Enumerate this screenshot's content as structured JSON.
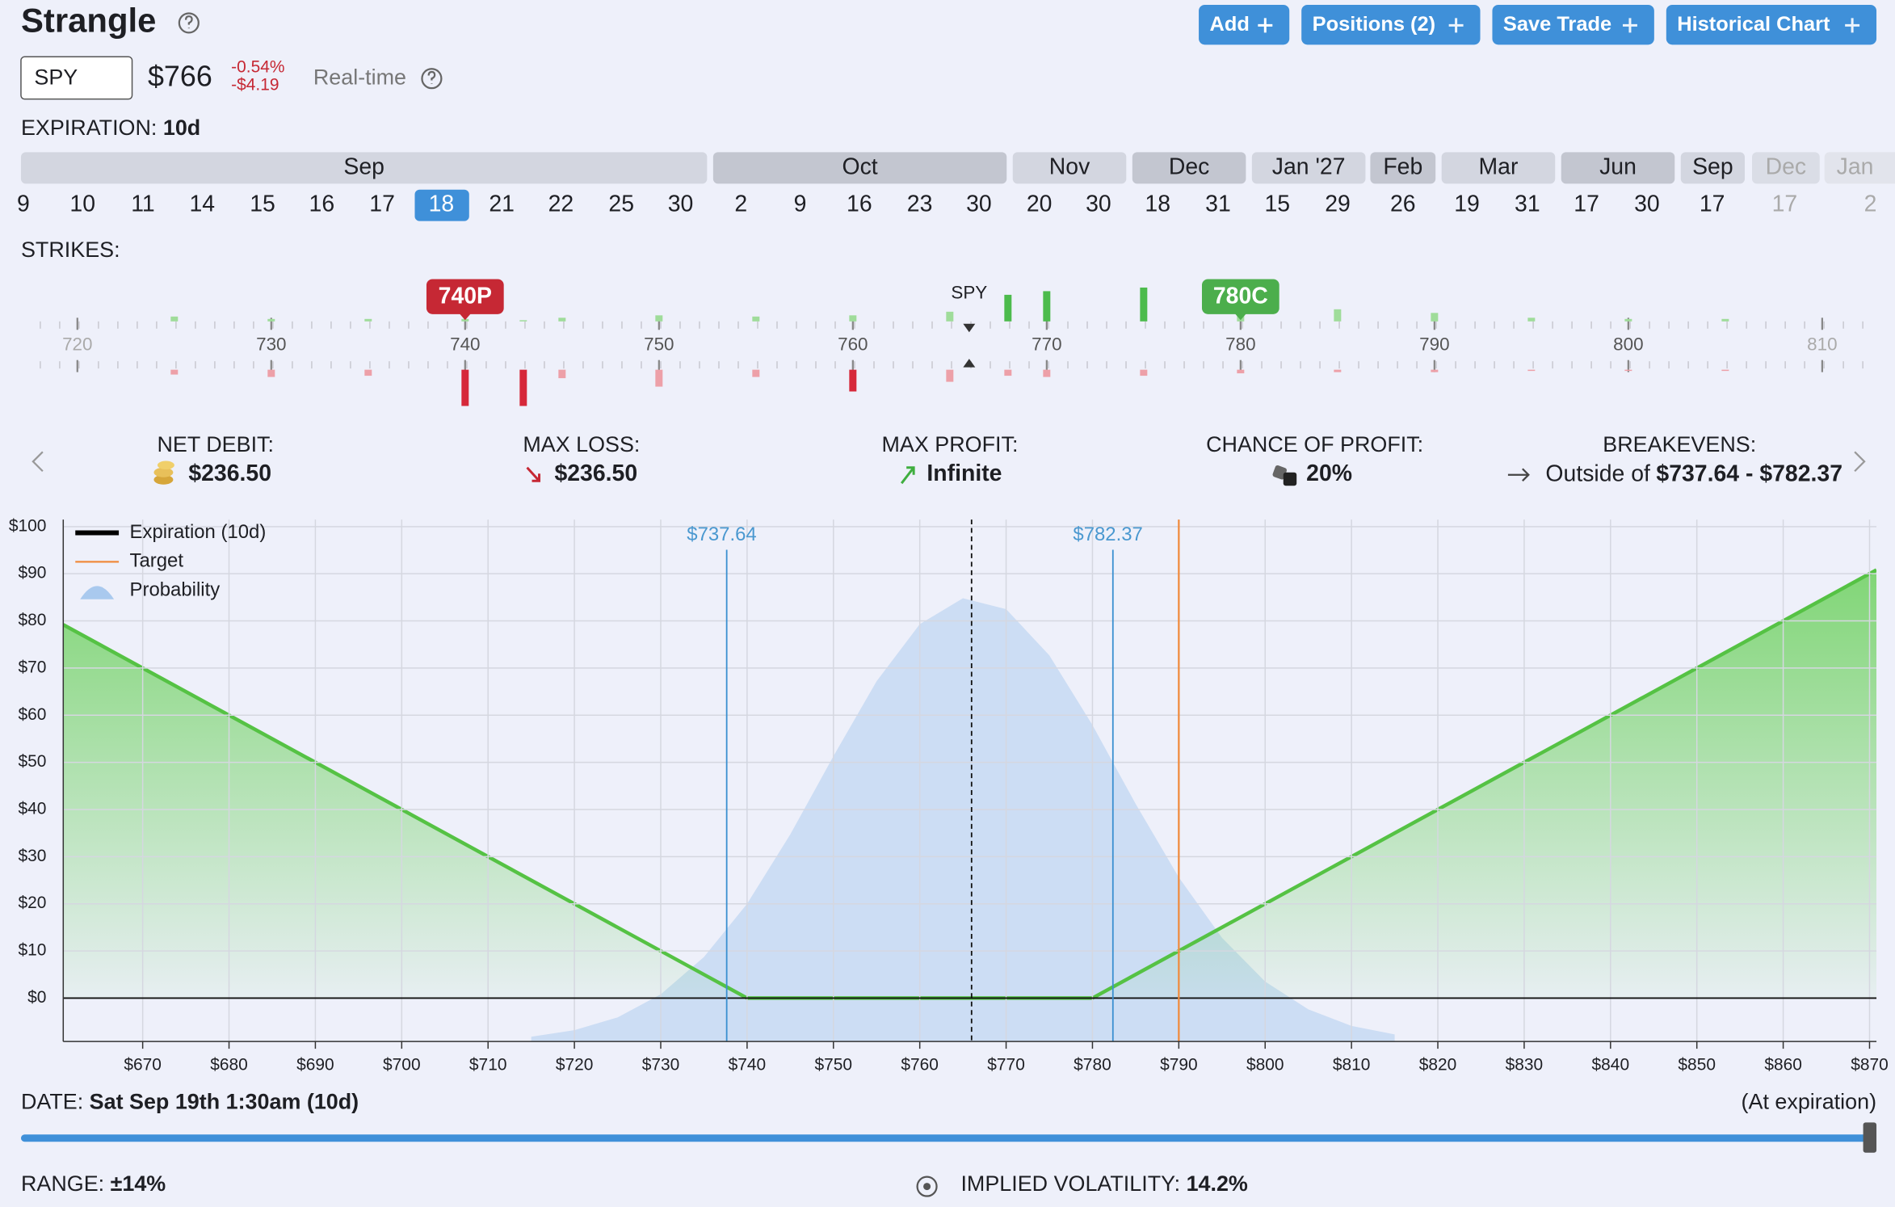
{
  "header": {
    "title": "Strangle",
    "buttons": [
      "Add",
      "Positions (2)",
      "Save Trade",
      "Historical Chart"
    ]
  },
  "quote": {
    "symbol": "SPY",
    "price": "$766",
    "change_pct": "-0.54%",
    "change": "-$4.19",
    "mode": "Real-time"
  },
  "expiration": {
    "label": "EXPIRATION:",
    "value": "10d",
    "selected": {
      "month": 0,
      "day": 7
    },
    "months": [
      {
        "label": "Sep",
        "days": [
          "9",
          "10",
          "11",
          "14",
          "15",
          "16",
          "17",
          "18",
          "21",
          "22",
          "25",
          "30"
        ]
      },
      {
        "label": "Oct",
        "days": [
          "2",
          "9",
          "16",
          "23",
          "30"
        ]
      },
      {
        "label": "Nov",
        "days": [
          "20",
          "30"
        ]
      },
      {
        "label": "Dec",
        "days": [
          "18",
          "31"
        ]
      },
      {
        "label": "Jan '27",
        "days": [
          "15",
          "29"
        ]
      },
      {
        "label": "Feb",
        "days": [
          "26"
        ]
      },
      {
        "label": "Mar",
        "days": [
          "19",
          "31"
        ]
      },
      {
        "label": "Jun",
        "days": [
          "17",
          "30"
        ]
      },
      {
        "label": "Sep",
        "days": [
          "17"
        ]
      },
      {
        "label": "Dec",
        "days": [
          "17"
        ]
      },
      {
        "label": "Jan",
        "days": [
          "2"
        ]
      }
    ]
  },
  "strikes": {
    "label": "STRIKES:",
    "xlim": [
      717.9,
      812.3
    ],
    "ticks": [
      720,
      730,
      740,
      750,
      760,
      770,
      780,
      790,
      800,
      810
    ],
    "underlying_label": "SPY",
    "underlying": 766,
    "legs": [
      {
        "label": "740P",
        "strike": 740,
        "color": "#c62834"
      },
      {
        "label": "780C",
        "strike": 780,
        "color": "#4cae4c"
      }
    ],
    "bars": {
      "strikes": [
        725,
        730,
        735,
        740,
        743,
        745,
        750,
        755,
        760,
        765,
        768,
        770,
        775,
        780,
        785,
        790,
        795,
        800,
        805
      ],
      "calls": [
        4,
        2,
        2,
        2,
        1,
        3,
        5,
        4,
        5,
        8,
        22,
        25,
        28,
        7,
        10,
        7,
        3,
        2,
        2
      ],
      "puts": [
        4,
        6,
        5,
        30,
        30,
        7,
        14,
        6,
        18,
        10,
        5,
        6,
        5,
        3,
        2,
        2,
        1,
        1,
        1
      ]
    }
  },
  "stats": [
    {
      "label": "NET DEBIT:",
      "value": "$236.50"
    },
    {
      "label": "MAX LOSS:",
      "value": "$236.50"
    },
    {
      "label": "MAX PROFIT:",
      "value": "Infinite"
    },
    {
      "label": "CHANCE OF PROFIT:",
      "value": "20%"
    },
    {
      "label": "BREAKEVENS:",
      "prefix": "Outside of",
      "value": "$737.64 - $782.37"
    }
  ],
  "chart_data": {
    "type": "line",
    "xlim": [
      660.8,
      870.8
    ],
    "ylim": [
      -9.2,
      101.5
    ],
    "grid": true,
    "xticks": [
      {
        "value": 670,
        "label": "$670"
      },
      {
        "value": 680,
        "label": "$680"
      },
      {
        "value": 690,
        "label": "$690"
      },
      {
        "value": 700,
        "label": "$700"
      },
      {
        "value": 710,
        "label": "$710"
      },
      {
        "value": 720,
        "label": "$720"
      },
      {
        "value": 730,
        "label": "$730"
      },
      {
        "value": 740,
        "label": "$740"
      },
      {
        "value": 750,
        "label": "$750"
      },
      {
        "value": 760,
        "label": "$760"
      },
      {
        "value": 770,
        "label": "$770"
      },
      {
        "value": 780,
        "label": "$780"
      },
      {
        "value": 790,
        "label": "$790"
      },
      {
        "value": 800,
        "label": "$800"
      },
      {
        "value": 810,
        "label": "$810"
      },
      {
        "value": 820,
        "label": "$820"
      },
      {
        "value": 830,
        "label": "$830"
      },
      {
        "value": 840,
        "label": "$840"
      },
      {
        "value": 850,
        "label": "$850"
      },
      {
        "value": 860,
        "label": "$860"
      },
      {
        "value": 870,
        "label": "$870"
      }
    ],
    "yticks": [
      {
        "value": 0,
        "label": "$0"
      },
      {
        "value": 10,
        "label": "$10"
      },
      {
        "value": 20,
        "label": "$20"
      },
      {
        "value": 30,
        "label": "$30"
      },
      {
        "value": 40,
        "label": "$40"
      },
      {
        "value": 50,
        "label": "$50"
      },
      {
        "value": 60,
        "label": "$60"
      },
      {
        "value": 70,
        "label": "$70"
      },
      {
        "value": 80,
        "label": "$80"
      },
      {
        "value": 90,
        "label": "$90"
      },
      {
        "value": 100,
        "label": "$100"
      }
    ],
    "series": [
      {
        "name": "Expiration (10d)",
        "color": "#55c244",
        "legend_color": "#000000",
        "x": [
          660.8,
          740,
          780,
          870.8
        ],
        "values": [
          79.2,
          0,
          0,
          90.8
        ]
      }
    ],
    "target": {
      "name": "Target",
      "color": "#f08a3c",
      "x": 790
    },
    "probability": {
      "name": "Probability",
      "color": "#a9c9ee",
      "x": [
        715,
        720,
        725,
        730,
        735,
        740,
        745,
        750,
        755,
        760,
        765,
        770,
        775,
        780,
        785,
        790,
        795,
        800,
        805,
        810,
        815
      ],
      "values": [
        -8.2,
        -6.8,
        -4.1,
        0.8,
        8.7,
        20.0,
        34.7,
        51.3,
        67.2,
        79.3,
        84.8,
        82.5,
        72.7,
        57.9,
        41.2,
        25.6,
        12.8,
        3.5,
        -2.4,
        -5.9,
        -7.7
      ]
    },
    "current_price": 766,
    "breakevens": [
      {
        "value": 737.64,
        "label": "$737.64"
      },
      {
        "value": 782.37,
        "label": "$782.37"
      }
    ]
  },
  "date": {
    "label": "DATE:",
    "value": "Sat Sep 19th 1:30am (10d)",
    "note": "(At expiration)"
  },
  "range": {
    "label": "RANGE:",
    "value": "±14%"
  },
  "volatility": {
    "label": "IMPLIED VOLATILITY:",
    "value": "14.2%"
  }
}
